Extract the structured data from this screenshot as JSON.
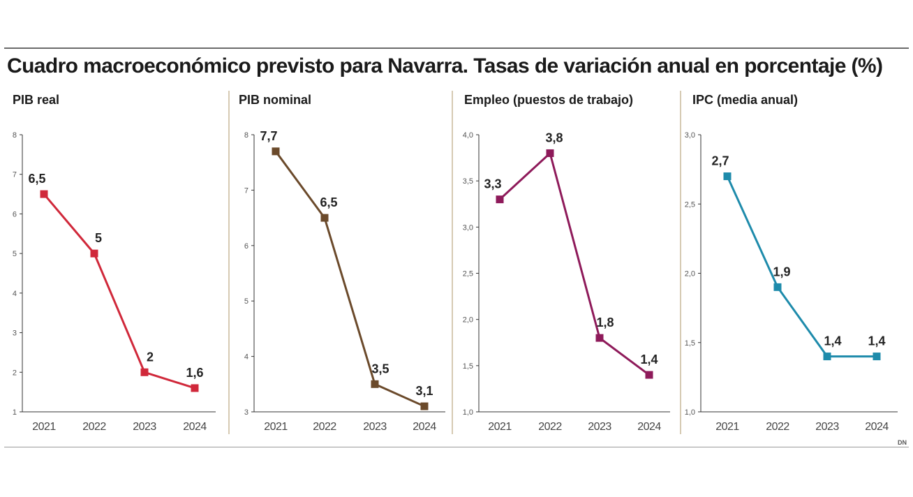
{
  "header": {
    "title": "Cuadro macroeconómico previsto para Navarra. Tasas de variación anual en porcentaje (%)",
    "logo": "DN"
  },
  "chart_data": [
    {
      "type": "line",
      "title": "PIB real",
      "categories": [
        "2021",
        "2022",
        "2023",
        "2024"
      ],
      "values": [
        6.5,
        5,
        2,
        1.6
      ],
      "labels": [
        "6,5",
        "5",
        "2",
        "1,6"
      ],
      "ylim": [
        1,
        8
      ],
      "yticks": [
        1,
        2,
        3,
        4,
        5,
        6,
        7,
        8
      ],
      "ytick_labels": [
        "1",
        "2",
        "3",
        "4",
        "5",
        "6",
        "7",
        "8"
      ],
      "color": "#d0283a"
    },
    {
      "type": "line",
      "title": "PIB nominal",
      "categories": [
        "2021",
        "2022",
        "2023",
        "2024"
      ],
      "values": [
        7.7,
        6.5,
        3.5,
        3.1
      ],
      "labels": [
        "7,7",
        "6,5",
        "3,5",
        "3,1"
      ],
      "ylim": [
        3,
        8
      ],
      "yticks": [
        3,
        4,
        5,
        6,
        7,
        8
      ],
      "ytick_labels": [
        "3",
        "4",
        "5",
        "6",
        "7",
        "8"
      ],
      "color": "#6b4a2b"
    },
    {
      "type": "line",
      "title": "Empleo (puestos de trabajo)",
      "categories": [
        "2021",
        "2022",
        "2023",
        "2024"
      ],
      "values": [
        3.3,
        3.8,
        1.8,
        1.4
      ],
      "labels": [
        "3,3",
        "3,8",
        "1,8",
        "1,4"
      ],
      "ylim": [
        1.0,
        4.0
      ],
      "yticks": [
        1.0,
        1.5,
        2.0,
        2.5,
        3.0,
        3.5,
        4.0
      ],
      "ytick_labels": [
        "1,0",
        "1,5",
        "2,0",
        "2,5",
        "3,0",
        "3,5",
        "4,0"
      ],
      "color": "#8e1a5a"
    },
    {
      "type": "line",
      "title": "IPC (media anual)",
      "categories": [
        "2021",
        "2022",
        "2023",
        "2024"
      ],
      "values": [
        2.7,
        1.9,
        1.4,
        1.4
      ],
      "labels": [
        "2,7",
        "1,9",
        "1,4",
        "1,4"
      ],
      "ylim": [
        1.0,
        3.0
      ],
      "yticks": [
        1.0,
        1.5,
        2.0,
        2.5,
        3.0
      ],
      "ytick_labels": [
        "1,0",
        "1,5",
        "2,0",
        "2,5",
        "3,0"
      ],
      "color": "#1e8bab"
    }
  ]
}
